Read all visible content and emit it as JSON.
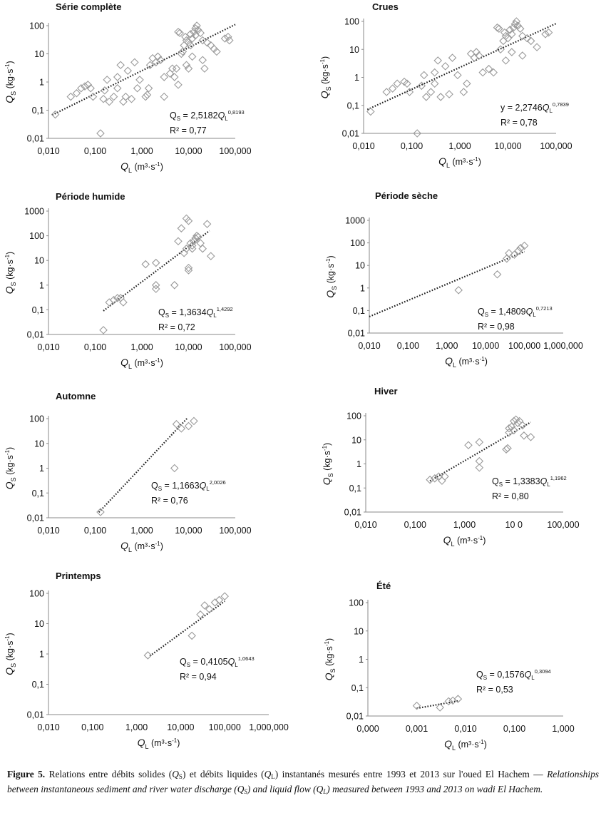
{
  "colors": {
    "marker": "#9a9a9a",
    "axis": "#8a8a8a",
    "trend": "#222222",
    "text": "#111111"
  },
  "axis_labels": {
    "y_q": "Q",
    "y_sub": "S",
    "y_unit": " (kg·s",
    "x_q": "Q",
    "x_sub": "L",
    "x_unit": " (m³·s",
    "neg": "-1",
    "close": ")"
  },
  "caption": {
    "fig": "Figure 5.",
    "fr1": " Relations entre débits solides (",
    "qs": "Q",
    "s": "S",
    "fr2": ") et débits liquides (",
    "ql": "Q",
    "l": "L",
    "fr3": ") instantanés mesurés entre 1993 et 2013 sur l'oued El Hachem — ",
    "en1": "Relationships between instantaneous sediment and river water discharge (Q",
    "en2": ") and liquid flow (Q",
    "en3": ") measured between 1993 and 2013 on wadi El Hachem."
  },
  "chart_data": [
    {
      "type": "scatter",
      "title": "Série complète",
      "xscale": "log",
      "yscale": "log",
      "xlim": [
        0.01,
        100
      ],
      "ylim": [
        0.01,
        100
      ],
      "xticks": [
        "0,010",
        "0,100",
        "1,000",
        "10,000",
        "100,000"
      ],
      "yticks": [
        "0,01",
        "0,1",
        "1",
        "10",
        "100"
      ],
      "equation": {
        "lead": "Q",
        "sub": "S",
        "eq": " = 2,5182",
        "q2": "Q",
        "sub2": "L",
        "exp": "0,8193"
      },
      "r2": "R² = 0,77",
      "trend": {
        "a": 2.5182,
        "b": 0.8193,
        "x_from": 0.012,
        "x_to": 100
      },
      "points": [
        [
          0.014,
          0.07
        ],
        [
          0.03,
          0.3
        ],
        [
          0.04,
          0.4
        ],
        [
          0.05,
          0.6
        ],
        [
          0.06,
          0.7
        ],
        [
          0.07,
          0.8
        ],
        [
          0.08,
          0.6
        ],
        [
          0.09,
          0.3
        ],
        [
          0.13,
          0.015
        ],
        [
          0.15,
          0.25
        ],
        [
          0.16,
          0.5
        ],
        [
          0.18,
          1.2
        ],
        [
          0.2,
          0.2
        ],
        [
          0.25,
          0.3
        ],
        [
          0.3,
          0.6
        ],
        [
          0.3,
          1.5
        ],
        [
          0.35,
          4
        ],
        [
          0.4,
          0.2
        ],
        [
          0.45,
          0.3
        ],
        [
          0.5,
          2.5
        ],
        [
          0.6,
          0.25
        ],
        [
          0.7,
          5
        ],
        [
          0.8,
          0.6
        ],
        [
          0.9,
          1.2
        ],
        [
          1.2,
          0.3
        ],
        [
          1.3,
          0.35
        ],
        [
          1.4,
          0.6
        ],
        [
          1.5,
          4
        ],
        [
          1.7,
          7
        ],
        [
          2,
          5
        ],
        [
          2.2,
          8
        ],
        [
          2.5,
          6
        ],
        [
          3,
          1.5
        ],
        [
          3,
          0.3
        ],
        [
          4,
          2
        ],
        [
          4.5,
          3
        ],
        [
          5,
          1.5
        ],
        [
          5.5,
          3
        ],
        [
          6,
          0.8
        ],
        [
          6,
          60
        ],
        [
          6.5,
          55
        ],
        [
          7,
          10
        ],
        [
          7.5,
          12
        ],
        [
          8,
          20
        ],
        [
          8.5,
          40
        ],
        [
          9,
          30
        ],
        [
          9,
          4
        ],
        [
          10,
          3
        ],
        [
          10,
          25
        ],
        [
          11,
          50
        ],
        [
          11,
          20
        ],
        [
          12,
          8
        ],
        [
          12,
          35
        ],
        [
          13,
          60
        ],
        [
          14,
          80
        ],
        [
          14,
          45
        ],
        [
          15,
          100
        ],
        [
          16,
          70
        ],
        [
          18,
          55
        ],
        [
          20,
          30
        ],
        [
          20,
          6
        ],
        [
          22,
          3
        ],
        [
          25,
          25
        ],
        [
          30,
          20
        ],
        [
          35,
          15
        ],
        [
          40,
          12
        ],
        [
          60,
          35
        ],
        [
          70,
          40
        ],
        [
          75,
          30
        ]
      ]
    },
    {
      "type": "scatter",
      "title": "Crues",
      "xscale": "log",
      "yscale": "log",
      "xlim": [
        0.01,
        100
      ],
      "ylim": [
        0.01,
        100
      ],
      "xticks": [
        "0,010",
        "0,100",
        "1,000",
        "10,000",
        "100,000"
      ],
      "yticks": [
        "0,01",
        "0,1",
        "1",
        "10",
        "100"
      ],
      "equation": {
        "lead": "y",
        "sub": "",
        "eq": " = 2,2746",
        "q2": "Q",
        "sub2": "L",
        "exp": "0,7839"
      },
      "r2": "R² = 0,78",
      "trend": {
        "a": 2.2746,
        "b": 0.7839,
        "x_from": 0.012,
        "x_to": 100
      },
      "points": [
        [
          0.014,
          0.06
        ],
        [
          0.03,
          0.3
        ],
        [
          0.04,
          0.4
        ],
        [
          0.05,
          0.6
        ],
        [
          0.07,
          0.7
        ],
        [
          0.08,
          0.6
        ],
        [
          0.09,
          0.3
        ],
        [
          0.13,
          0.01
        ],
        [
          0.16,
          0.5
        ],
        [
          0.18,
          1.2
        ],
        [
          0.2,
          0.2
        ],
        [
          0.25,
          0.3
        ],
        [
          0.3,
          0.6
        ],
        [
          0.3,
          1.5
        ],
        [
          0.35,
          4
        ],
        [
          0.4,
          0.2
        ],
        [
          0.5,
          2.5
        ],
        [
          0.6,
          0.25
        ],
        [
          0.7,
          5
        ],
        [
          0.9,
          1.2
        ],
        [
          1.2,
          0.3
        ],
        [
          1.4,
          0.6
        ],
        [
          1.7,
          7
        ],
        [
          2,
          5
        ],
        [
          2.2,
          8
        ],
        [
          2.5,
          6
        ],
        [
          3,
          1.5
        ],
        [
          4,
          2
        ],
        [
          5,
          1.5
        ],
        [
          6,
          60
        ],
        [
          6.5,
          55
        ],
        [
          7,
          10
        ],
        [
          8,
          20
        ],
        [
          8.5,
          40
        ],
        [
          9,
          30
        ],
        [
          9,
          4
        ],
        [
          10,
          25
        ],
        [
          11,
          50
        ],
        [
          12,
          8
        ],
        [
          12,
          35
        ],
        [
          13,
          60
        ],
        [
          14,
          80
        ],
        [
          15,
          100
        ],
        [
          16,
          70
        ],
        [
          18,
          55
        ],
        [
          20,
          30
        ],
        [
          20,
          6
        ],
        [
          25,
          25
        ],
        [
          30,
          20
        ],
        [
          40,
          12
        ],
        [
          60,
          35
        ],
        [
          70,
          40
        ]
      ]
    },
    {
      "type": "scatter",
      "title": "Période humide",
      "xscale": "log",
      "yscale": "log",
      "xlim": [
        0.01,
        100
      ],
      "ylim": [
        0.01,
        1000
      ],
      "xticks": [
        "0,010",
        "0,100",
        "1,000",
        "10,000",
        "100,000"
      ],
      "yticks": [
        "0,01",
        "0,1",
        "1",
        "10",
        "100",
        "1000"
      ],
      "equation": {
        "lead": "Q",
        "sub": "S",
        "eq": " = 1,3634",
        "q2": "Q",
        "sub2": "L",
        "exp": "1,4292"
      },
      "r2": "R² = 0,72",
      "trend": {
        "a": 1.3634,
        "b": 1.4292,
        "x_from": 0.15,
        "x_to": 28
      },
      "points": [
        [
          0.15,
          0.015
        ],
        [
          0.2,
          0.2
        ],
        [
          0.25,
          0.25
        ],
        [
          0.3,
          0.3
        ],
        [
          0.35,
          0.3
        ],
        [
          0.4,
          0.2
        ],
        [
          1.2,
          7
        ],
        [
          2,
          8
        ],
        [
          2,
          0.7
        ],
        [
          2,
          1
        ],
        [
          5,
          1
        ],
        [
          6,
          60
        ],
        [
          7,
          200
        ],
        [
          8,
          20
        ],
        [
          9,
          30
        ],
        [
          9,
          500
        ],
        [
          10,
          4
        ],
        [
          10,
          5
        ],
        [
          10,
          400
        ],
        [
          11,
          50
        ],
        [
          12,
          30
        ],
        [
          12,
          40
        ],
        [
          13,
          60
        ],
        [
          14,
          80
        ],
        [
          15,
          100
        ],
        [
          16,
          90
        ],
        [
          18,
          50
        ],
        [
          20,
          30
        ],
        [
          25,
          300
        ],
        [
          30,
          15
        ]
      ]
    },
    {
      "type": "scatter",
      "title": "Période sèche",
      "xscale": "log",
      "yscale": "log",
      "xlim": [
        0.01,
        1000
      ],
      "ylim": [
        0.01,
        1000
      ],
      "xticks": [
        "0,010",
        "0,100",
        "1,000",
        "10,000",
        "100,000",
        "1,000,000"
      ],
      "yticks": [
        "0,01",
        "0,1",
        "1",
        "10",
        "100",
        "1000"
      ],
      "equation": {
        "lead": "Q",
        "sub": "S",
        "eq": " = 1,4809",
        "q2": "Q",
        "sub2": "L",
        "exp": "0,7213"
      },
      "r2": "R² = 0,98",
      "trend": {
        "a": 1.4809,
        "b": 0.7213,
        "x_from": 0.01,
        "x_to": 100
      },
      "points": [
        [
          2,
          0.8
        ],
        [
          20,
          4
        ],
        [
          35,
          20
        ],
        [
          40,
          35
        ],
        [
          55,
          30
        ],
        [
          70,
          45
        ],
        [
          80,
          60
        ],
        [
          100,
          75
        ]
      ]
    },
    {
      "type": "scatter",
      "title": "Automne",
      "xscale": "log",
      "yscale": "log",
      "xlim": [
        0.01,
        100
      ],
      "ylim": [
        0.01,
        100
      ],
      "xticks": [
        "0,010",
        "0,100",
        "1,000",
        "10,000",
        "100,000"
      ],
      "yticks": [
        "0,01",
        "0,1",
        "1",
        "10",
        "100"
      ],
      "equation": {
        "lead": "Q",
        "sub": "S",
        "eq": " = 1,1663",
        "q2": "Q",
        "sub2": "L",
        "exp": "2,0026"
      },
      "r2": "R² = 0,76",
      "trend": {
        "a": 1.1663,
        "b": 2.0026,
        "x_from": 0.12,
        "x_to": 9.5
      },
      "points": [
        [
          0.13,
          0.017
        ],
        [
          5,
          1
        ],
        [
          5.5,
          60
        ],
        [
          7,
          40
        ],
        [
          10,
          50
        ],
        [
          13,
          80
        ]
      ]
    },
    {
      "type": "scatter",
      "title": "Hiver",
      "xscale": "log",
      "yscale": "log",
      "xlim": [
        0.01,
        100
      ],
      "ylim": [
        0.01,
        100
      ],
      "xticks": [
        "0,010",
        "0,100",
        "1,000",
        "10 0",
        "100,000"
      ],
      "yticks": [
        "0,01",
        "0,1",
        "1",
        "10",
        "100"
      ],
      "equation": {
        "lead": "Q",
        "sub": "S",
        "eq": " = 1,3383",
        "q2": "Q",
        "sub2": "L",
        "exp": "1,1962"
      },
      "r2": "R² = 0,80",
      "trend": {
        "a": 1.3383,
        "b": 1.1962,
        "x_from": 0.2,
        "x_to": 22
      },
      "points": [
        [
          0.2,
          0.22
        ],
        [
          0.25,
          0.25
        ],
        [
          0.3,
          0.3
        ],
        [
          0.35,
          0.2
        ],
        [
          0.4,
          0.3
        ],
        [
          1.2,
          6
        ],
        [
          2,
          8
        ],
        [
          2,
          0.7
        ],
        [
          2,
          1.3
        ],
        [
          7,
          4
        ],
        [
          7.5,
          4.5
        ],
        [
          8,
          20
        ],
        [
          8,
          30
        ],
        [
          9,
          35
        ],
        [
          10,
          25
        ],
        [
          10,
          60
        ],
        [
          11,
          70
        ],
        [
          12,
          50
        ],
        [
          13,
          60
        ],
        [
          15,
          40
        ],
        [
          16,
          15
        ],
        [
          22,
          13
        ]
      ]
    },
    {
      "type": "scatter",
      "title": "Printemps",
      "xscale": "log",
      "yscale": "log",
      "xlim": [
        0.01,
        1000
      ],
      "ylim": [
        0.01,
        100
      ],
      "xticks": [
        "0,010",
        "0,100",
        "1,000",
        "10,000",
        "100,000",
        "1,000,000"
      ],
      "yticks": [
        "0,01",
        "0,1",
        "1",
        "10",
        "100"
      ],
      "equation": {
        "lead": "Q",
        "sub": "S",
        "eq": " = 0,4105",
        "q2": "Q",
        "sub2": "L",
        "exp": "1,0643"
      },
      "r2": "R² = 0,94",
      "trend": {
        "a": 0.4105,
        "b": 1.0643,
        "x_from": 2,
        "x_to": 100
      },
      "points": [
        [
          1.8,
          0.9
        ],
        [
          18,
          4
        ],
        [
          28,
          20
        ],
        [
          35,
          40
        ],
        [
          45,
          30
        ],
        [
          60,
          50
        ],
        [
          75,
          60
        ],
        [
          100,
          80
        ]
      ]
    },
    {
      "type": "scatter",
      "title": "Été",
      "xscale": "log",
      "yscale": "log",
      "xlim": [
        0.0001,
        1
      ],
      "ylim": [
        0.01,
        100
      ],
      "xticks": [
        "0,000",
        "0,001",
        "0,010",
        "0,100",
        "1,000"
      ],
      "yticks": [
        "0,01",
        "0,1",
        "1",
        "10",
        "100"
      ],
      "equation": {
        "lead": "Q",
        "sub": "S",
        "eq": " = 0,1576",
        "q2": "Q",
        "sub2": "L",
        "exp": "0,3094"
      },
      "r2": "R² = 0,53",
      "trend": {
        "a": 0.1576,
        "b": 0.3094,
        "x_from": 0.001,
        "x_to": 0.0075
      },
      "points": [
        [
          0.001,
          0.023
        ],
        [
          0.003,
          0.02
        ],
        [
          0.0045,
          0.033
        ],
        [
          0.0055,
          0.035
        ],
        [
          0.007,
          0.04
        ]
      ]
    }
  ]
}
